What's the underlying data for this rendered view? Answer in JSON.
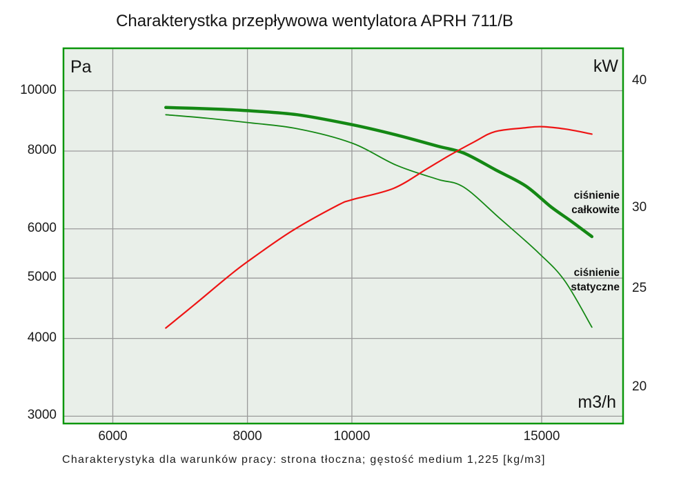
{
  "chart_data": {
    "type": "line",
    "title": "Charakterystka przepływowa wentylatora APRH 711/B",
    "caption": "Charakterystyka dla warunków pracy: strona tłoczna; gęstość medium 1,225 [kg/m3]",
    "grid": true,
    "legend_position": "labels-on-plot-right",
    "colors": {
      "plot_bg": "#e9efe9",
      "border": "#0a960a",
      "grid": "#9a9a9a",
      "green_curve": "#148814",
      "red_curve": "#ee1414",
      "text": "#151515"
    },
    "x_axis": {
      "unit_label": "m3/h",
      "scale": "log",
      "range": [
        5400,
        17850
      ],
      "ticks": [
        6000,
        8000,
        10000,
        15000
      ]
    },
    "y_left_axis": {
      "unit_label": "Pa",
      "scale": "log",
      "range": [
        2920,
        11700
      ],
      "ticks": [
        3000,
        4000,
        5000,
        6000,
        8000,
        10000
      ]
    },
    "y_right_axis": {
      "unit_label": "kW",
      "scale": "log",
      "range": [
        18.45,
        43.1
      ],
      "ticks": [
        20,
        25,
        30,
        40
      ]
    },
    "series": [
      {
        "id": "total-pressure",
        "label_line1": "ciśnienie",
        "label_line2": "całkowite",
        "axis": "left",
        "color": "#148814",
        "width": 4.5,
        "points": [
          [
            6720,
            9400
          ],
          [
            7400,
            9350
          ],
          [
            8000,
            9290
          ],
          [
            8900,
            9150
          ],
          [
            10000,
            8820
          ],
          [
            11000,
            8490
          ],
          [
            12000,
            8150
          ],
          [
            12700,
            7940
          ],
          [
            13600,
            7460
          ],
          [
            14500,
            7030
          ],
          [
            15300,
            6510
          ],
          [
            16000,
            6160
          ],
          [
            16700,
            5830
          ]
        ]
      },
      {
        "id": "static-pressure",
        "label_line1": "ciśnienie",
        "label_line2": "statyczne",
        "axis": "left",
        "color": "#148814",
        "width": 1.8,
        "points": [
          [
            6720,
            9150
          ],
          [
            7350,
            9030
          ],
          [
            8000,
            8890
          ],
          [
            8900,
            8690
          ],
          [
            10000,
            8240
          ],
          [
            11000,
            7590
          ],
          [
            12000,
            7210
          ],
          [
            12700,
            7000
          ],
          [
            13740,
            6220
          ],
          [
            14900,
            5490
          ],
          [
            15760,
            4950
          ],
          [
            16700,
            4170
          ]
        ]
      },
      {
        "id": "power",
        "label_line1": "",
        "label_line2": "",
        "axis": "right",
        "color": "#ee1414",
        "width": 2.2,
        "points": [
          [
            6720,
            22.9
          ],
          [
            7130,
            24.1
          ],
          [
            7670,
            25.7
          ],
          [
            8000,
            26.6
          ],
          [
            8790,
            28.5
          ],
          [
            9690,
            30.2
          ],
          [
            10000,
            30.6
          ],
          [
            10930,
            31.4
          ],
          [
            11730,
            32.8
          ],
          [
            12300,
            33.8
          ],
          [
            13000,
            34.9
          ],
          [
            13580,
            35.7
          ],
          [
            14450,
            36.0
          ],
          [
            15000,
            36.1
          ],
          [
            15800,
            35.9
          ],
          [
            16700,
            35.5
          ]
        ]
      }
    ]
  }
}
